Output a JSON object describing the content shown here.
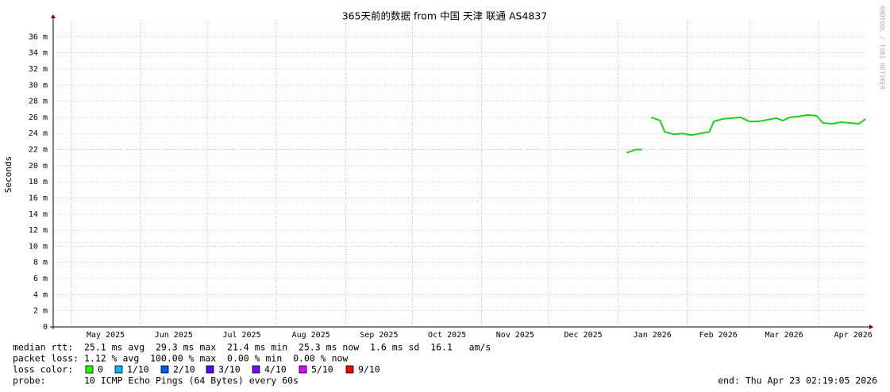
{
  "chart_data": {
    "type": "line",
    "title": "365天前的数据 from 中国 天津 联通 AS4837",
    "y_label": "Seconds",
    "xlim": [
      0,
      365
    ],
    "xticks": [
      {
        "value": 8,
        "label": "May 2025"
      },
      {
        "value": 39,
        "label": "Jun 2025"
      },
      {
        "value": 69,
        "label": "Jul 2025"
      },
      {
        "value": 100,
        "label": "Aug 2025"
      },
      {
        "value": 131,
        "label": "Sep 2025"
      },
      {
        "value": 161,
        "label": "Oct 2025"
      },
      {
        "value": 192,
        "label": "Nov 2025"
      },
      {
        "value": 222,
        "label": "Dec 2025"
      },
      {
        "value": 253,
        "label": "Jan 2026"
      },
      {
        "value": 284,
        "label": "Feb 2026"
      },
      {
        "value": 312,
        "label": "Mar 2026"
      },
      {
        "value": 343,
        "label": "Apr 2026"
      }
    ],
    "ylim": [
      0,
      38
    ],
    "yticks": [
      0,
      {
        "value": 2,
        "label": "2 m"
      },
      {
        "value": 4,
        "label": "4 m"
      },
      {
        "value": 6,
        "label": "6 m"
      },
      {
        "value": 8,
        "label": "8 m"
      },
      {
        "value": 10,
        "label": "10 m"
      },
      {
        "value": 12,
        "label": "12 m"
      },
      {
        "value": 14,
        "label": "14 m"
      },
      {
        "value": 16,
        "label": "16 m"
      },
      {
        "value": 18,
        "label": "18 m"
      },
      {
        "value": 20,
        "label": "20 m"
      },
      {
        "value": 22,
        "label": "22 m"
      },
      {
        "value": 24,
        "label": "24 m"
      },
      {
        "value": 26,
        "label": "26 m"
      },
      {
        "value": 28,
        "label": "28 m"
      },
      {
        "value": 30,
        "label": "30 m"
      },
      {
        "value": 32,
        "label": "32 m"
      },
      {
        "value": 34,
        "label": "34 m"
      },
      {
        "value": 36,
        "label": "36 m"
      }
    ],
    "grid": true,
    "x": [
      257,
      259,
      261,
      264,
      266,
      268,
      270,
      272,
      274,
      278,
      282,
      286,
      290,
      294,
      296,
      300,
      304,
      308,
      312,
      316,
      320,
      324,
      327,
      330,
      334,
      338,
      342,
      345,
      349,
      353,
      357,
      361,
      364
    ],
    "series": [
      {
        "name": "median rtt",
        "color": "#22cc22",
        "values": [
          21.6,
          21.8,
          22.0,
          22.0,
          null,
          26.0,
          25.8,
          25.6,
          24.2,
          23.9,
          24.0,
          23.8,
          24.0,
          24.2,
          25.5,
          25.8,
          25.9,
          26.0,
          25.5,
          25.5,
          25.7,
          25.9,
          25.6,
          26.0,
          26.1,
          26.3,
          26.2,
          25.3,
          25.2,
          25.4,
          25.3,
          25.2,
          25.8
        ]
      }
    ],
    "watermark": "RRDTOOL / TOBI OETIKER"
  },
  "footer": {
    "median_rtt": "median rtt:  25.1 ms avg  29.3 ms max  21.4 ms min  25.3 ms now  1.6 ms sd  16.1   am/s",
    "packet_loss": "packet loss: 1.12 % avg  100.00 % max  0.00 % min  0.00 % now",
    "loss_color_label": "loss color:",
    "loss_colors": [
      {
        "label": "0",
        "color": "#26ff00"
      },
      {
        "label": "1/10",
        "color": "#00b8ff"
      },
      {
        "label": "2/10",
        "color": "#0059ff"
      },
      {
        "label": "3/10",
        "color": "#5e00ff"
      },
      {
        "label": "4/10",
        "color": "#7e00ff"
      },
      {
        "label": "5/10",
        "color": "#dd00ff"
      },
      {
        "label": "9/10",
        "color": "#ff0000"
      }
    ],
    "probe": "probe:       10 ICMP Echo Pings (64 Bytes) every 60s",
    "end": "end: Thu Apr 23 02:19:05 2026"
  }
}
